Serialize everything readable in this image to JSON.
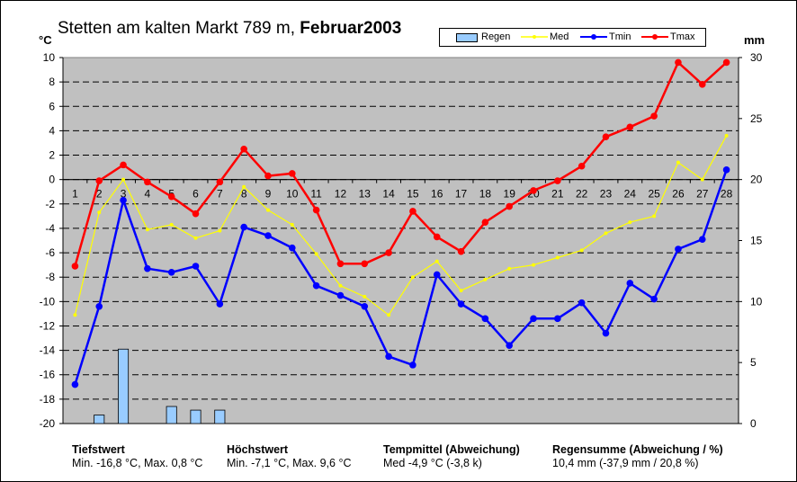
{
  "title": {
    "station": "Stetten am kalten Markt 789 m,",
    "month": "Februar",
    "year": "2003"
  },
  "axis_units": {
    "left": "°C",
    "right": "mm"
  },
  "legend": [
    {
      "label": "Regen",
      "color": "#99ccff",
      "kind": "bar"
    },
    {
      "label": "Med",
      "color": "#ffff00",
      "kind": "line"
    },
    {
      "label": "Tmin",
      "color": "#0000ff",
      "kind": "line"
    },
    {
      "label": "Tmax",
      "color": "#ff0000",
      "kind": "line"
    }
  ],
  "chart_data": {
    "type": "line",
    "x": [
      "1",
      "2",
      "3",
      "4",
      "5",
      "6",
      "7",
      "8",
      "9",
      "10",
      "11",
      "12",
      "13",
      "14",
      "15",
      "16",
      "17",
      "18",
      "19",
      "20",
      "21",
      "22",
      "23",
      "24",
      "25",
      "26",
      "27",
      "28"
    ],
    "y_left": {
      "label": "°C",
      "range": [
        -20,
        10
      ],
      "ticks": [
        "10",
        "8",
        "6",
        "4",
        "2",
        "0",
        "-2",
        "-4",
        "-6",
        "-8",
        "-10",
        "-12",
        "-14",
        "-16",
        "-18",
        "-20"
      ]
    },
    "y_right": {
      "label": "mm",
      "range": [
        0,
        30
      ],
      "ticks": [
        "30",
        "25",
        "20",
        "15",
        "10",
        "5",
        "0"
      ]
    },
    "grid": "dashed horizontal",
    "series": [
      {
        "name": "Tmax",
        "color": "#ff0000",
        "values": [
          -7.1,
          -0.1,
          1.2,
          -0.2,
          -1.4,
          -2.8,
          -0.2,
          2.5,
          0.3,
          0.5,
          -2.5,
          -6.9,
          -6.9,
          -6.0,
          -2.6,
          -4.7,
          -5.9,
          -3.5,
          -2.2,
          -0.9,
          -0.1,
          1.1,
          3.5,
          4.3,
          5.2,
          9.6,
          7.8,
          9.6
        ]
      },
      {
        "name": "Med",
        "color": "#ffff00",
        "values": [
          -11.1,
          -2.7,
          0.0,
          -4.1,
          -3.7,
          -4.8,
          -4.2,
          -0.6,
          -2.5,
          -3.7,
          -6.1,
          -8.7,
          -9.6,
          -11.1,
          -8.0,
          -6.7,
          -9.1,
          -8.2,
          -7.3,
          -7.0,
          -6.4,
          -5.8,
          -4.4,
          -3.5,
          -3.0,
          1.4,
          0.0,
          3.6
        ]
      },
      {
        "name": "Tmin",
        "color": "#0000ff",
        "values": [
          -16.8,
          -10.4,
          -1.7,
          -7.3,
          -7.6,
          -7.1,
          -10.2,
          -3.9,
          -4.6,
          -5.6,
          -8.7,
          -9.5,
          -10.4,
          -14.5,
          -15.2,
          -7.8,
          -10.2,
          -11.4,
          -13.6,
          -11.4,
          -11.4,
          -10.1,
          -12.6,
          -8.5,
          -9.8,
          -5.7,
          -4.9,
          0.8
        ]
      },
      {
        "name": "Regen",
        "color": "#99ccff",
        "axis": "right",
        "values": [
          0,
          0.7,
          6.1,
          0,
          1.4,
          1.1,
          1.1,
          0,
          0,
          0,
          0,
          0,
          0,
          0,
          0,
          0,
          0,
          0,
          0,
          0,
          0,
          0,
          0,
          0,
          0,
          0,
          0,
          0
        ]
      }
    ]
  },
  "stats": [
    {
      "heading": "Tiefstwert",
      "text": "Min. -16,8 °C, Max. 0,8 °C"
    },
    {
      "heading": "Höchstwert",
      "text": "Min. -7,1 °C, Max. 9,6 °C"
    },
    {
      "heading": "Tempmittel (Abweichung)",
      "text": "Med -4,9 °C (-3,8 k)"
    },
    {
      "heading": "Regensumme (Abweichung / %)",
      "text": "10,4 mm (-37,9 mm / 20,8 %)"
    }
  ]
}
